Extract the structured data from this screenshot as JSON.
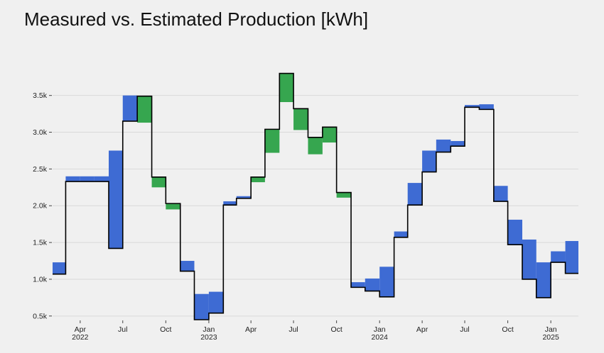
{
  "chart_data": {
    "type": "bar",
    "title": "Measured vs. Estimated Production [kWh]",
    "xlabel": "",
    "ylabel": "",
    "ylim": [
      450,
      3950
    ],
    "grid": true,
    "legend": "none",
    "colors": {
      "estimated_above_measured": "#3e6bd3",
      "measured_above_estimated": "#36a64f",
      "measured_line": "#000000",
      "background": "#f0f0f0",
      "grid": "#d9d9d9"
    },
    "y_ticks": [
      {
        "value": 500,
        "label": "0.5k"
      },
      {
        "value": 1000,
        "label": "1.0k"
      },
      {
        "value": 1500,
        "label": "1.5k"
      },
      {
        "value": 2000,
        "label": "2.0k"
      },
      {
        "value": 2500,
        "label": "2.5k"
      },
      {
        "value": 3000,
        "label": "3.0k"
      },
      {
        "value": 3500,
        "label": "3.5k"
      }
    ],
    "x_ticks": [
      {
        "date": "2022-04-01",
        "month": "Apr",
        "year": "2022"
      },
      {
        "date": "2022-07-01",
        "month": "Jul",
        "year": ""
      },
      {
        "date": "2022-10-01",
        "month": "Oct",
        "year": ""
      },
      {
        "date": "2023-01-01",
        "month": "Jan",
        "year": "2023"
      },
      {
        "date": "2023-04-01",
        "month": "Apr",
        "year": ""
      },
      {
        "date": "2023-07-01",
        "month": "Jul",
        "year": ""
      },
      {
        "date": "2023-10-01",
        "month": "Oct",
        "year": ""
      },
      {
        "date": "2024-01-01",
        "month": "Jan",
        "year": "2024"
      },
      {
        "date": "2024-04-01",
        "month": "Apr",
        "year": ""
      },
      {
        "date": "2024-07-01",
        "month": "Jul",
        "year": ""
      },
      {
        "date": "2024-10-01",
        "month": "Oct",
        "year": ""
      },
      {
        "date": "2025-01-01",
        "month": "Jan",
        "year": "2025"
      }
    ],
    "x_range": [
      "2022-02-01",
      "2025-03-01"
    ],
    "months": [
      "2022-02",
      "2022-03",
      "2022-04",
      "2022-05",
      "2022-06",
      "2022-07",
      "2022-08",
      "2022-09",
      "2022-10",
      "2022-11",
      "2022-12",
      "2023-01",
      "2023-02",
      "2023-03",
      "2023-04",
      "2023-05",
      "2023-06",
      "2023-07",
      "2023-08",
      "2023-09",
      "2023-10",
      "2023-11",
      "2023-12",
      "2024-01",
      "2024-02",
      "2024-03",
      "2024-04",
      "2024-05",
      "2024-06",
      "2024-07",
      "2024-08",
      "2024-09",
      "2024-10",
      "2024-11",
      "2024-12",
      "2025-01",
      "2025-02"
    ],
    "series": [
      {
        "name": "",
        "role": "measured",
        "values": [
          1070,
          2330,
          2330,
          2330,
          1420,
          3150,
          3490,
          2390,
          2030,
          1110,
          420,
          540,
          2010,
          2100,
          2390,
          3040,
          3800,
          3320,
          2930,
          3070,
          2180,
          890,
          840,
          760,
          1570,
          2010,
          2460,
          2730,
          2810,
          3340,
          3310,
          2060,
          1470,
          1000,
          750,
          1230,
          1080
        ]
      },
      {
        "name": "",
        "role": "estimated",
        "values": [
          1230,
          2400,
          2400,
          2400,
          2750,
          3500,
          3130,
          2250,
          1950,
          1250,
          800,
          830,
          2060,
          2130,
          2320,
          2720,
          3410,
          3030,
          2700,
          2860,
          2110,
          960,
          1010,
          1170,
          1650,
          2310,
          2750,
          2900,
          2880,
          3370,
          3380,
          2270,
          1810,
          1540,
          1230,
          1380,
          1520
        ]
      }
    ]
  }
}
